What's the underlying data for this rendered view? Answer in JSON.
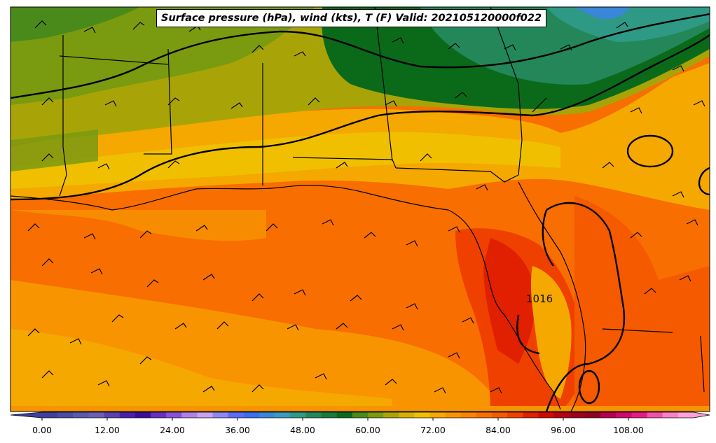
{
  "title": "Surface pressure (hPa), wind (kts), T (F) Valid: 202105120000f022",
  "contour_label": "1016",
  "colorbar": {
    "ticks": [
      "0.00",
      "12.00",
      "24.00",
      "36.00",
      "48.00",
      "60.00",
      "72.00",
      "84.00",
      "96.00",
      "108.00"
    ],
    "colors": [
      "#3f3f9e",
      "#4a4aa8",
      "#5959b0",
      "#6a5fb5",
      "#5a40b0",
      "#4a20a8",
      "#3d0c9e",
      "#6a2fc0",
      "#8a50d8",
      "#b080e8",
      "#c8a0f0",
      "#8f86f5",
      "#5b6cf5",
      "#3b6ef0",
      "#3a86d8",
      "#3a9ac0",
      "#2e9a86",
      "#23875a",
      "#1a7a3a",
      "#0a6a1a",
      "#4a8a1a",
      "#7a9a10",
      "#a8a408",
      "#d4b004",
      "#f0c000",
      "#f5a800",
      "#f89400",
      "#fa8200",
      "#f86e00",
      "#f55a00",
      "#f04000",
      "#e02000",
      "#d00800",
      "#b80010",
      "#a00018",
      "#900020",
      "#b80050",
      "#d00870",
      "#e81888",
      "#f050a8",
      "#f880c8",
      "#ffa0d8"
    ]
  }
}
